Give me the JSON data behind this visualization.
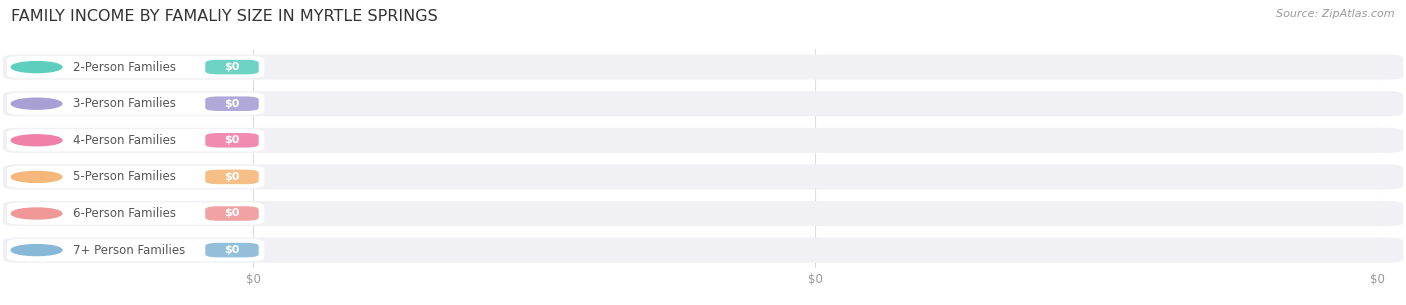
{
  "title": "FAMILY INCOME BY FAMALIY SIZE IN MYRTLE SPRINGS",
  "source": "Source: ZipAtlas.com",
  "categories": [
    "2-Person Families",
    "3-Person Families",
    "4-Person Families",
    "5-Person Families",
    "6-Person Families",
    "7+ Person Families"
  ],
  "values": [
    0,
    0,
    0,
    0,
    0,
    0
  ],
  "bar_colors": [
    "#5ecfbf",
    "#a89fd4",
    "#f080a8",
    "#f5b87a",
    "#f09898",
    "#88b8d8"
  ],
  "bg_color": "#ffffff",
  "row_bg_color": "#f0f0f5",
  "title_fontsize": 11.5,
  "label_fontsize": 8.5,
  "value_fontsize": 8,
  "source_fontsize": 8,
  "x_tick_labels": [
    "$0",
    "$0",
    "$0"
  ]
}
